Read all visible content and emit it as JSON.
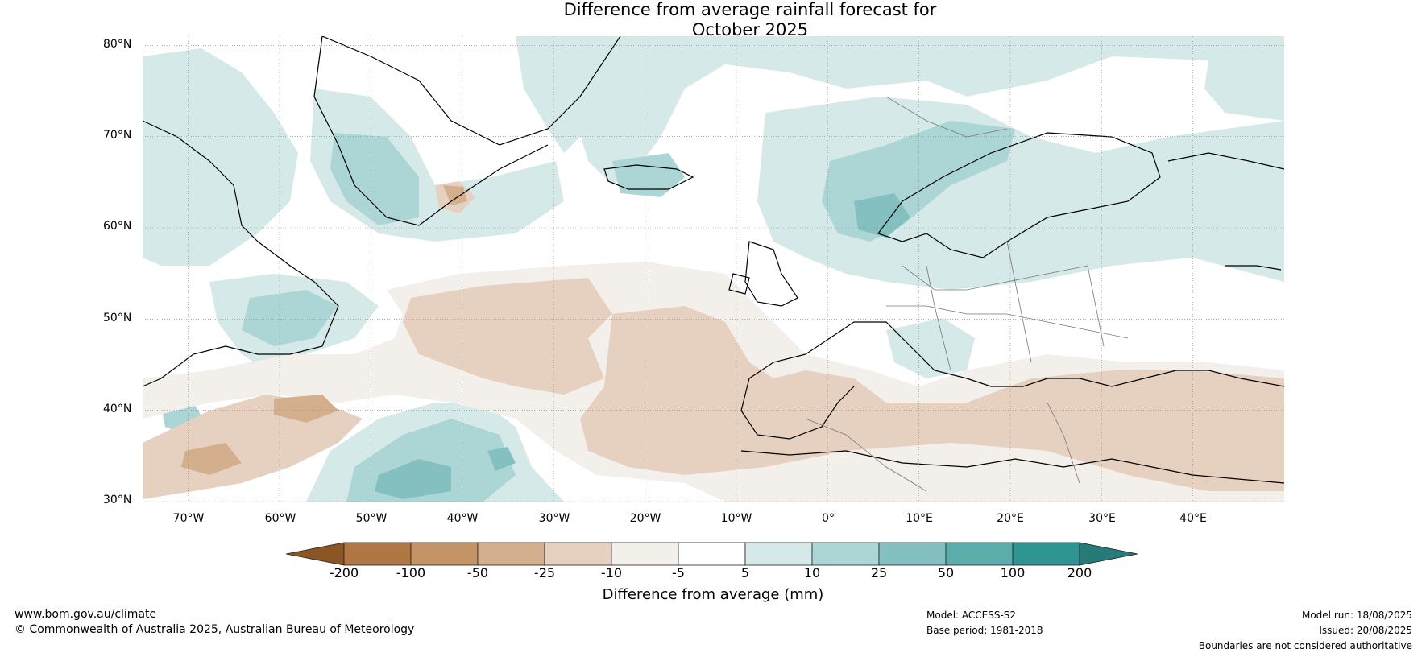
{
  "title_line1": "Difference from average rainfall forecast for",
  "title_line2": "October 2025",
  "map": {
    "projection": "equirectangular",
    "lon_range": [
      -75,
      50
    ],
    "lat_range": [
      30,
      81
    ],
    "latitude_labels": [
      "80°N",
      "70°N",
      "60°N",
      "50°N",
      "40°N",
      "30°N"
    ],
    "longitude_labels": [
      "70°W",
      "60°W",
      "50°W",
      "40°W",
      "30°W",
      "20°W",
      "10°W",
      "0°",
      "10°E",
      "20°E",
      "30°E",
      "40°E"
    ],
    "gridlines": true
  },
  "colorbar": {
    "title": "Difference from average (mm)",
    "tick_labels": [
      "-200",
      "-100",
      "-50",
      "-25",
      "-10",
      "-5",
      "5",
      "10",
      "25",
      "50",
      "100",
      "200"
    ],
    "colors": [
      "#8c5524",
      "#b07744",
      "#c49467",
      "#d4af8e",
      "#e6d1c0",
      "#f3efea",
      "#ffffff",
      "#d5e9e8",
      "#acd6d5",
      "#84c0bf",
      "#5aadab",
      "#2e9593",
      "#267a78"
    ]
  },
  "footer": {
    "url": "www.bom.gov.au/climate",
    "copyright": "© Commonwealth of Australia 2025, Australian Bureau of Meteorology",
    "model": "Model: ACCESS-S2",
    "base_period": "Base period: 1981-2018",
    "model_run": "Model run: 18/08/2025",
    "issued": "Issued: 20/08/2025",
    "disclaimer": "Boundaries are not considered authoritative"
  }
}
